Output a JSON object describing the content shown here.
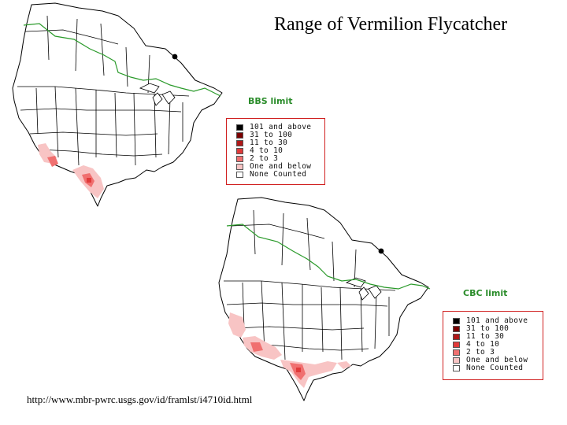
{
  "title": "Range of Vermilion Flycatcher",
  "source_url": "http://www.mbr-pwrc.usgs.gov/id/framlst/i4710id.html",
  "maps": [
    {
      "limit_label": "BBS limit"
    },
    {
      "limit_label": "CBC limit"
    }
  ],
  "legend": [
    {
      "label": "101 and above",
      "color": "#000000"
    },
    {
      "label": "31 to 100",
      "color": "#7a0000"
    },
    {
      "label": "11 to 30",
      "color": "#b01818"
    },
    {
      "label": "4 to 10",
      "color": "#e03a3a"
    },
    {
      "label": "2 to 3",
      "color": "#f07070"
    },
    {
      "label": "One and below",
      "color": "#f8c4c4"
    },
    {
      "label": "None Counted",
      "color": "#ffffff"
    }
  ],
  "colors": {
    "boundary": "#000000",
    "limit_line": "#2a9a2a",
    "legend_border": "#d02020"
  }
}
